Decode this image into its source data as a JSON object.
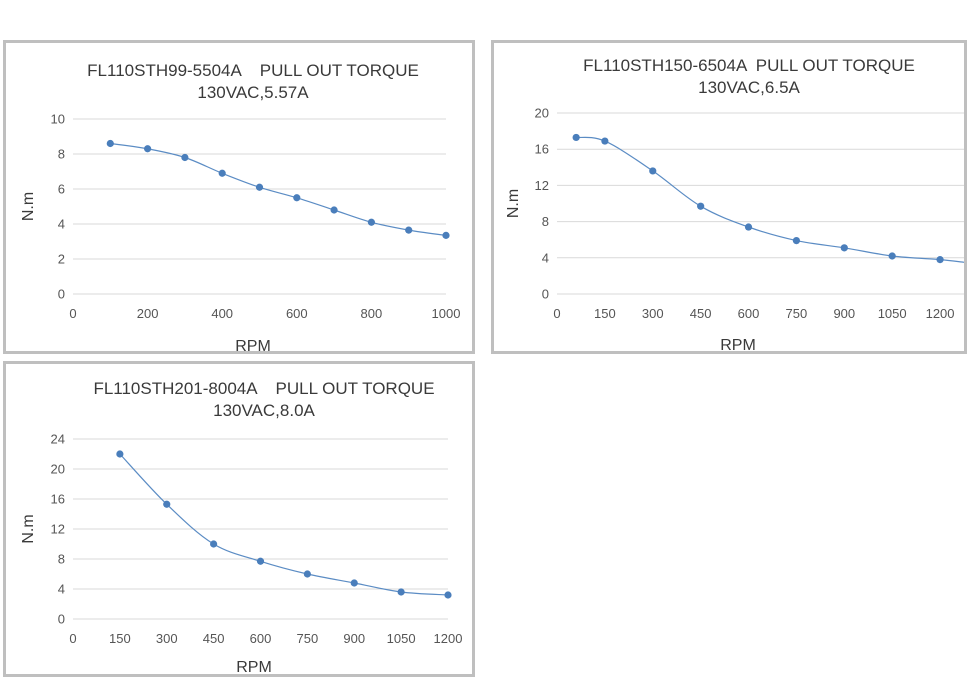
{
  "chart_data": [
    {
      "type": "line",
      "title": "FL110STH99-5504A    PULL OUT TORQUE",
      "subtitle": "130VAC,5.57A",
      "xlabel": "RPM",
      "ylabel": "N.m",
      "xlim": [
        0,
        1000
      ],
      "ylim": [
        0,
        10
      ],
      "xticks": [
        0,
        200,
        400,
        600,
        800,
        1000
      ],
      "yticks": [
        0,
        2,
        4,
        6,
        8,
        10
      ],
      "grid": true,
      "x": [
        100,
        200,
        300,
        400,
        500,
        600,
        700,
        800,
        900,
        1000
      ],
      "y": [
        8.6,
        8.3,
        7.8,
        6.9,
        6.1,
        5.5,
        4.8,
        4.1,
        3.65,
        3.35
      ]
    },
    {
      "type": "line",
      "title": "FL110STH150-6504A  PULL OUT TORQUE",
      "subtitle": "130VAC,6.5A",
      "xlabel": "RPM",
      "ylabel": "N.m",
      "xlim": [
        0,
        1275
      ],
      "ylim": [
        0,
        20
      ],
      "xticks": [
        0,
        150,
        300,
        450,
        600,
        750,
        900,
        1050,
        1200
      ],
      "yticks": [
        0,
        4,
        8,
        12,
        16,
        20
      ],
      "grid": true,
      "x": [
        60,
        150,
        300,
        450,
        600,
        750,
        900,
        1050,
        1200
      ],
      "y": [
        17.3,
        16.9,
        13.6,
        9.7,
        7.4,
        5.9,
        5.1,
        4.2,
        3.8
      ],
      "line_end": [
        1275,
        3.5
      ]
    },
    {
      "type": "line",
      "title": "FL110STH201-8004A    PULL OUT TORQUE",
      "subtitle": "130VAC,8.0A",
      "xlabel": "RPM",
      "ylabel": "N.m",
      "xlim": [
        0,
        1200
      ],
      "ylim": [
        0,
        24
      ],
      "xticks": [
        0,
        150,
        300,
        450,
        600,
        750,
        900,
        1050,
        1200
      ],
      "yticks": [
        0,
        4,
        8,
        12,
        16,
        20,
        24
      ],
      "grid": true,
      "x": [
        150,
        300,
        450,
        600,
        750,
        900,
        1050,
        1200
      ],
      "y": [
        22,
        15.3,
        10,
        7.7,
        6,
        4.8,
        3.6,
        3.2
      ]
    }
  ]
}
